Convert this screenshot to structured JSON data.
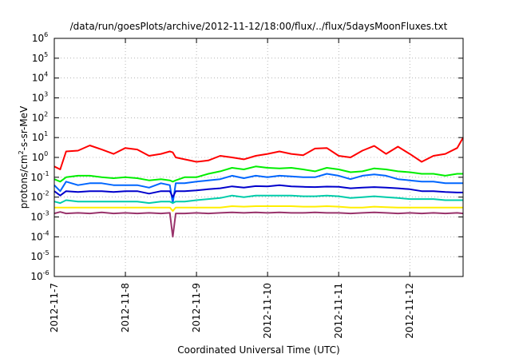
{
  "chart_data": {
    "type": "line",
    "title": "/data/run/goesPlots/archive/2012-11-12/18:00/flux/../flux/5daysMoonFluxes.txt",
    "xlabel": "Coordinated Universal Time (UTC)",
    "ylabel": {
      "base": "protons/cm",
      "superscript": "2",
      "suffix": "-s-sr-MeV"
    },
    "ylog": true,
    "ylim": [
      1e-06,
      1000000.0
    ],
    "yticks": [
      {
        "value": 1e-06,
        "base": "10",
        "exp": "-6"
      },
      {
        "value": 1e-05,
        "base": "10",
        "exp": "-5"
      },
      {
        "value": 0.0001,
        "base": "10",
        "exp": "-4"
      },
      {
        "value": 0.001,
        "base": "10",
        "exp": "-3"
      },
      {
        "value": 0.01,
        "base": "10",
        "exp": "-2"
      },
      {
        "value": 0.1,
        "base": "10",
        "exp": "-1"
      },
      {
        "value": 1,
        "base": "10",
        "exp": "0"
      },
      {
        "value": 10,
        "base": "10",
        "exp": "1"
      },
      {
        "value": 100,
        "base": "10",
        "exp": "2"
      },
      {
        "value": 1000,
        "base": "10",
        "exp": "3"
      },
      {
        "value": 10000,
        "base": "10",
        "exp": "4"
      },
      {
        "value": 100000,
        "base": "10",
        "exp": "5"
      },
      {
        "value": 1000000,
        "base": "10",
        "exp": "6"
      }
    ],
    "xlim": [
      "2012-11-07T00:00",
      "2012-11-12T18:00"
    ],
    "xticks": [
      "2012-11-7",
      "2012-11-8",
      "2012-11-9",
      "2012-11-10",
      "2012-11-11",
      "2012-11-12"
    ],
    "xtick_dates": [
      "2012-11-07T00:00",
      "2012-11-08T00:00",
      "2012-11-09T00:00",
      "2012-11-10T00:00",
      "2012-11-11T00:00",
      "2012-11-12T00:00"
    ],
    "grid": true,
    "x": [
      "2012-11-07T00:00",
      "2012-11-07T02:00",
      "2012-11-07T04:00",
      "2012-11-07T08:00",
      "2012-11-07T12:00",
      "2012-11-07T16:00",
      "2012-11-07T20:00",
      "2012-11-08T00:00",
      "2012-11-08T04:00",
      "2012-11-08T08:00",
      "2012-11-08T12:00",
      "2012-11-08T15:00",
      "2012-11-08T16:00",
      "2012-11-08T17:00",
      "2012-11-08T20:00",
      "2012-11-09T00:00",
      "2012-11-09T04:00",
      "2012-11-09T08:00",
      "2012-11-09T12:00",
      "2012-11-09T16:00",
      "2012-11-09T20:00",
      "2012-11-10T00:00",
      "2012-11-10T04:00",
      "2012-11-10T08:00",
      "2012-11-10T12:00",
      "2012-11-10T16:00",
      "2012-11-10T20:00",
      "2012-11-11T00:00",
      "2012-11-11T04:00",
      "2012-11-11T08:00",
      "2012-11-11T12:00",
      "2012-11-11T16:00",
      "2012-11-11T20:00",
      "2012-11-12T00:00",
      "2012-11-12T04:00",
      "2012-11-12T08:00",
      "2012-11-12T12:00",
      "2012-11-12T16:00",
      "2012-11-12T18:00"
    ],
    "series": [
      {
        "color": "#ff0000",
        "values": [
          0.35,
          0.25,
          2.0,
          2.2,
          4.0,
          2.5,
          1.5,
          3.0,
          2.5,
          1.2,
          1.5,
          2.0,
          1.8,
          1.0,
          0.8,
          0.6,
          0.7,
          1.2,
          1.0,
          0.8,
          1.2,
          1.5,
          2.0,
          1.5,
          1.3,
          2.8,
          3.0,
          1.2,
          1.0,
          2.2,
          3.8,
          1.5,
          3.5,
          1.5,
          0.6,
          1.2,
          1.5,
          3.0,
          10.0
        ]
      },
      {
        "color": "#00ee00",
        "values": [
          0.08,
          0.06,
          0.1,
          0.12,
          0.12,
          0.1,
          0.09,
          0.1,
          0.09,
          0.07,
          0.08,
          0.07,
          0.06,
          0.07,
          0.1,
          0.1,
          0.15,
          0.2,
          0.3,
          0.25,
          0.35,
          0.3,
          0.28,
          0.3,
          0.25,
          0.2,
          0.3,
          0.25,
          0.18,
          0.2,
          0.28,
          0.25,
          0.2,
          0.18,
          0.15,
          0.15,
          0.12,
          0.15,
          0.15
        ]
      },
      {
        "color": "#0066ff",
        "values": [
          0.04,
          0.02,
          0.06,
          0.04,
          0.05,
          0.05,
          0.04,
          0.04,
          0.04,
          0.03,
          0.05,
          0.04,
          0.005,
          0.05,
          0.05,
          0.06,
          0.07,
          0.08,
          0.12,
          0.09,
          0.12,
          0.1,
          0.12,
          0.11,
          0.1,
          0.1,
          0.15,
          0.12,
          0.08,
          0.12,
          0.14,
          0.12,
          0.08,
          0.07,
          0.06,
          0.06,
          0.05,
          0.05,
          0.05
        ]
      },
      {
        "color": "#0000cc",
        "values": [
          0.02,
          0.012,
          0.02,
          0.018,
          0.02,
          0.02,
          0.018,
          0.02,
          0.02,
          0.015,
          0.02,
          0.02,
          0.01,
          0.02,
          0.02,
          0.022,
          0.025,
          0.028,
          0.035,
          0.03,
          0.036,
          0.035,
          0.04,
          0.035,
          0.033,
          0.032,
          0.034,
          0.033,
          0.028,
          0.03,
          0.032,
          0.03,
          0.028,
          0.025,
          0.02,
          0.02,
          0.018,
          0.017,
          0.017
        ]
      },
      {
        "color": "#00ccaa",
        "values": [
          0.006,
          0.005,
          0.007,
          0.006,
          0.006,
          0.006,
          0.006,
          0.006,
          0.006,
          0.005,
          0.006,
          0.006,
          0.005,
          0.006,
          0.006,
          0.007,
          0.008,
          0.009,
          0.012,
          0.01,
          0.012,
          0.012,
          0.012,
          0.012,
          0.011,
          0.011,
          0.012,
          0.011,
          0.009,
          0.01,
          0.011,
          0.01,
          0.009,
          0.008,
          0.008,
          0.008,
          0.007,
          0.007,
          0.007
        ]
      },
      {
        "color": "#ffee00",
        "values": [
          0.003,
          0.003,
          0.003,
          0.003,
          0.003,
          0.003,
          0.003,
          0.003,
          0.003,
          0.003,
          0.003,
          0.003,
          0.002,
          0.003,
          0.003,
          0.003,
          0.003,
          0.003,
          0.0035,
          0.0033,
          0.0035,
          0.0035,
          0.0035,
          0.0035,
          0.0033,
          0.0033,
          0.0035,
          0.0033,
          0.003,
          0.003,
          0.0033,
          0.0031,
          0.003,
          0.003,
          0.003,
          0.003,
          0.003,
          0.003,
          0.003
        ]
      },
      {
        "color": "#99336b",
        "values": [
          0.0015,
          0.0018,
          0.0015,
          0.0016,
          0.0015,
          0.0017,
          0.0015,
          0.0016,
          0.0015,
          0.0016,
          0.0015,
          0.0016,
          0.0001,
          0.0015,
          0.0015,
          0.0016,
          0.0015,
          0.0016,
          0.0017,
          0.0016,
          0.0017,
          0.0016,
          0.0017,
          0.0016,
          0.0016,
          0.0017,
          0.0016,
          0.0016,
          0.0015,
          0.0016,
          0.0017,
          0.0016,
          0.0015,
          0.0016,
          0.0015,
          0.0016,
          0.0015,
          0.0016,
          0.0015
        ]
      }
    ]
  }
}
